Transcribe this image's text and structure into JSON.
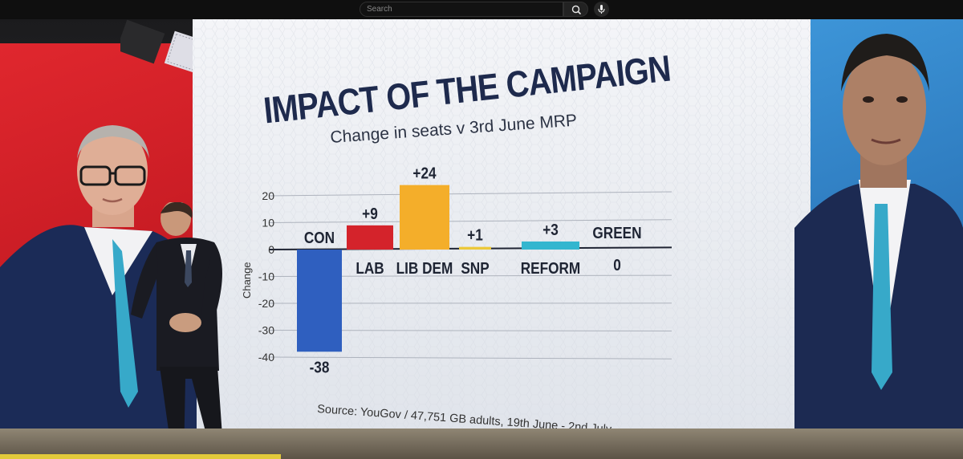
{
  "search": {
    "placeholder": "Search"
  },
  "chart_data": {
    "type": "bar",
    "title": "IMPACT OF THE CAMPAIGN",
    "subtitle": "Change in seats v 3rd June MRP",
    "ylabel": "Change",
    "xlabel": "",
    "source": "Source: YouGov / 47,751 GB adults, 19th June - 2nd July",
    "ylim": [
      -40,
      20
    ],
    "yticks": [
      20,
      10,
      0,
      -10,
      -20,
      -30,
      -40
    ],
    "grid": true,
    "categories": [
      "CON",
      "LAB",
      "LIB DEM",
      "SNP",
      "REFORM",
      "GREEN"
    ],
    "values": [
      -38,
      9,
      24,
      1,
      3,
      0
    ],
    "value_labels": [
      "-38",
      "+9",
      "+24",
      "+1",
      "+3",
      "0"
    ],
    "colors": [
      "#2f5fbf",
      "#d4232b",
      "#f4ae2a",
      "#ecc83a",
      "#33b6cf",
      "#53a548"
    ]
  }
}
